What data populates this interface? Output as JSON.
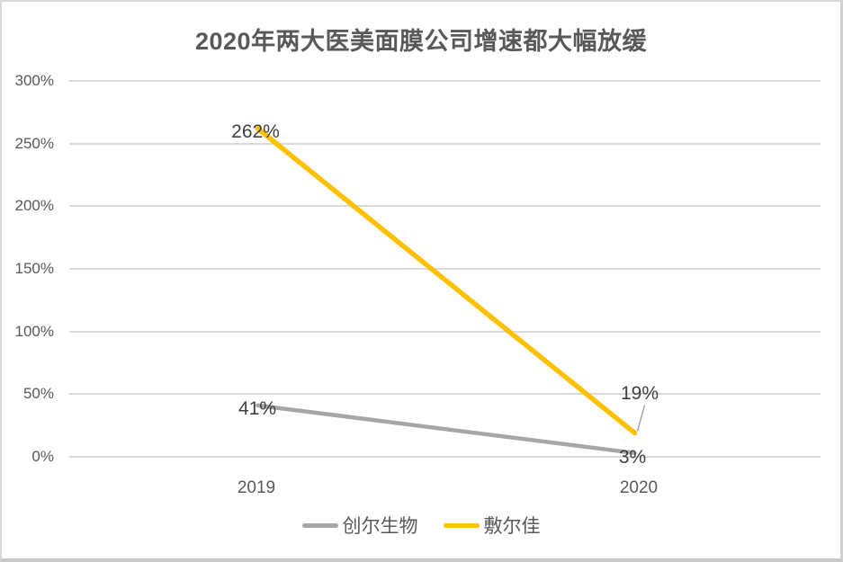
{
  "chart_data": {
    "type": "line",
    "title": "2020年两大医美面膜公司增速都大幅放缓",
    "categories": [
      "2019",
      "2020"
    ],
    "series": [
      {
        "name": "创尔生物",
        "values": [
          41,
          3
        ],
        "labels": [
          "41%",
          "3%"
        ],
        "color": "#a6a6a6"
      },
      {
        "name": "敷尔佳",
        "values": [
          262,
          19
        ],
        "labels": [
          "262%",
          "19%"
        ],
        "color": "#ffc000"
      }
    ],
    "ylabel": "",
    "xlabel": "",
    "ylim": [
      0,
      300
    ],
    "yticks": [
      "0%",
      "50%",
      "100%",
      "150%",
      "200%",
      "250%",
      "300%"
    ],
    "grid": true,
    "legend_position": "bottom",
    "colors": {
      "title": "#595959",
      "axis_text": "#595959",
      "data_label_text": "#404040",
      "gridline": "#d9d9d9"
    }
  }
}
